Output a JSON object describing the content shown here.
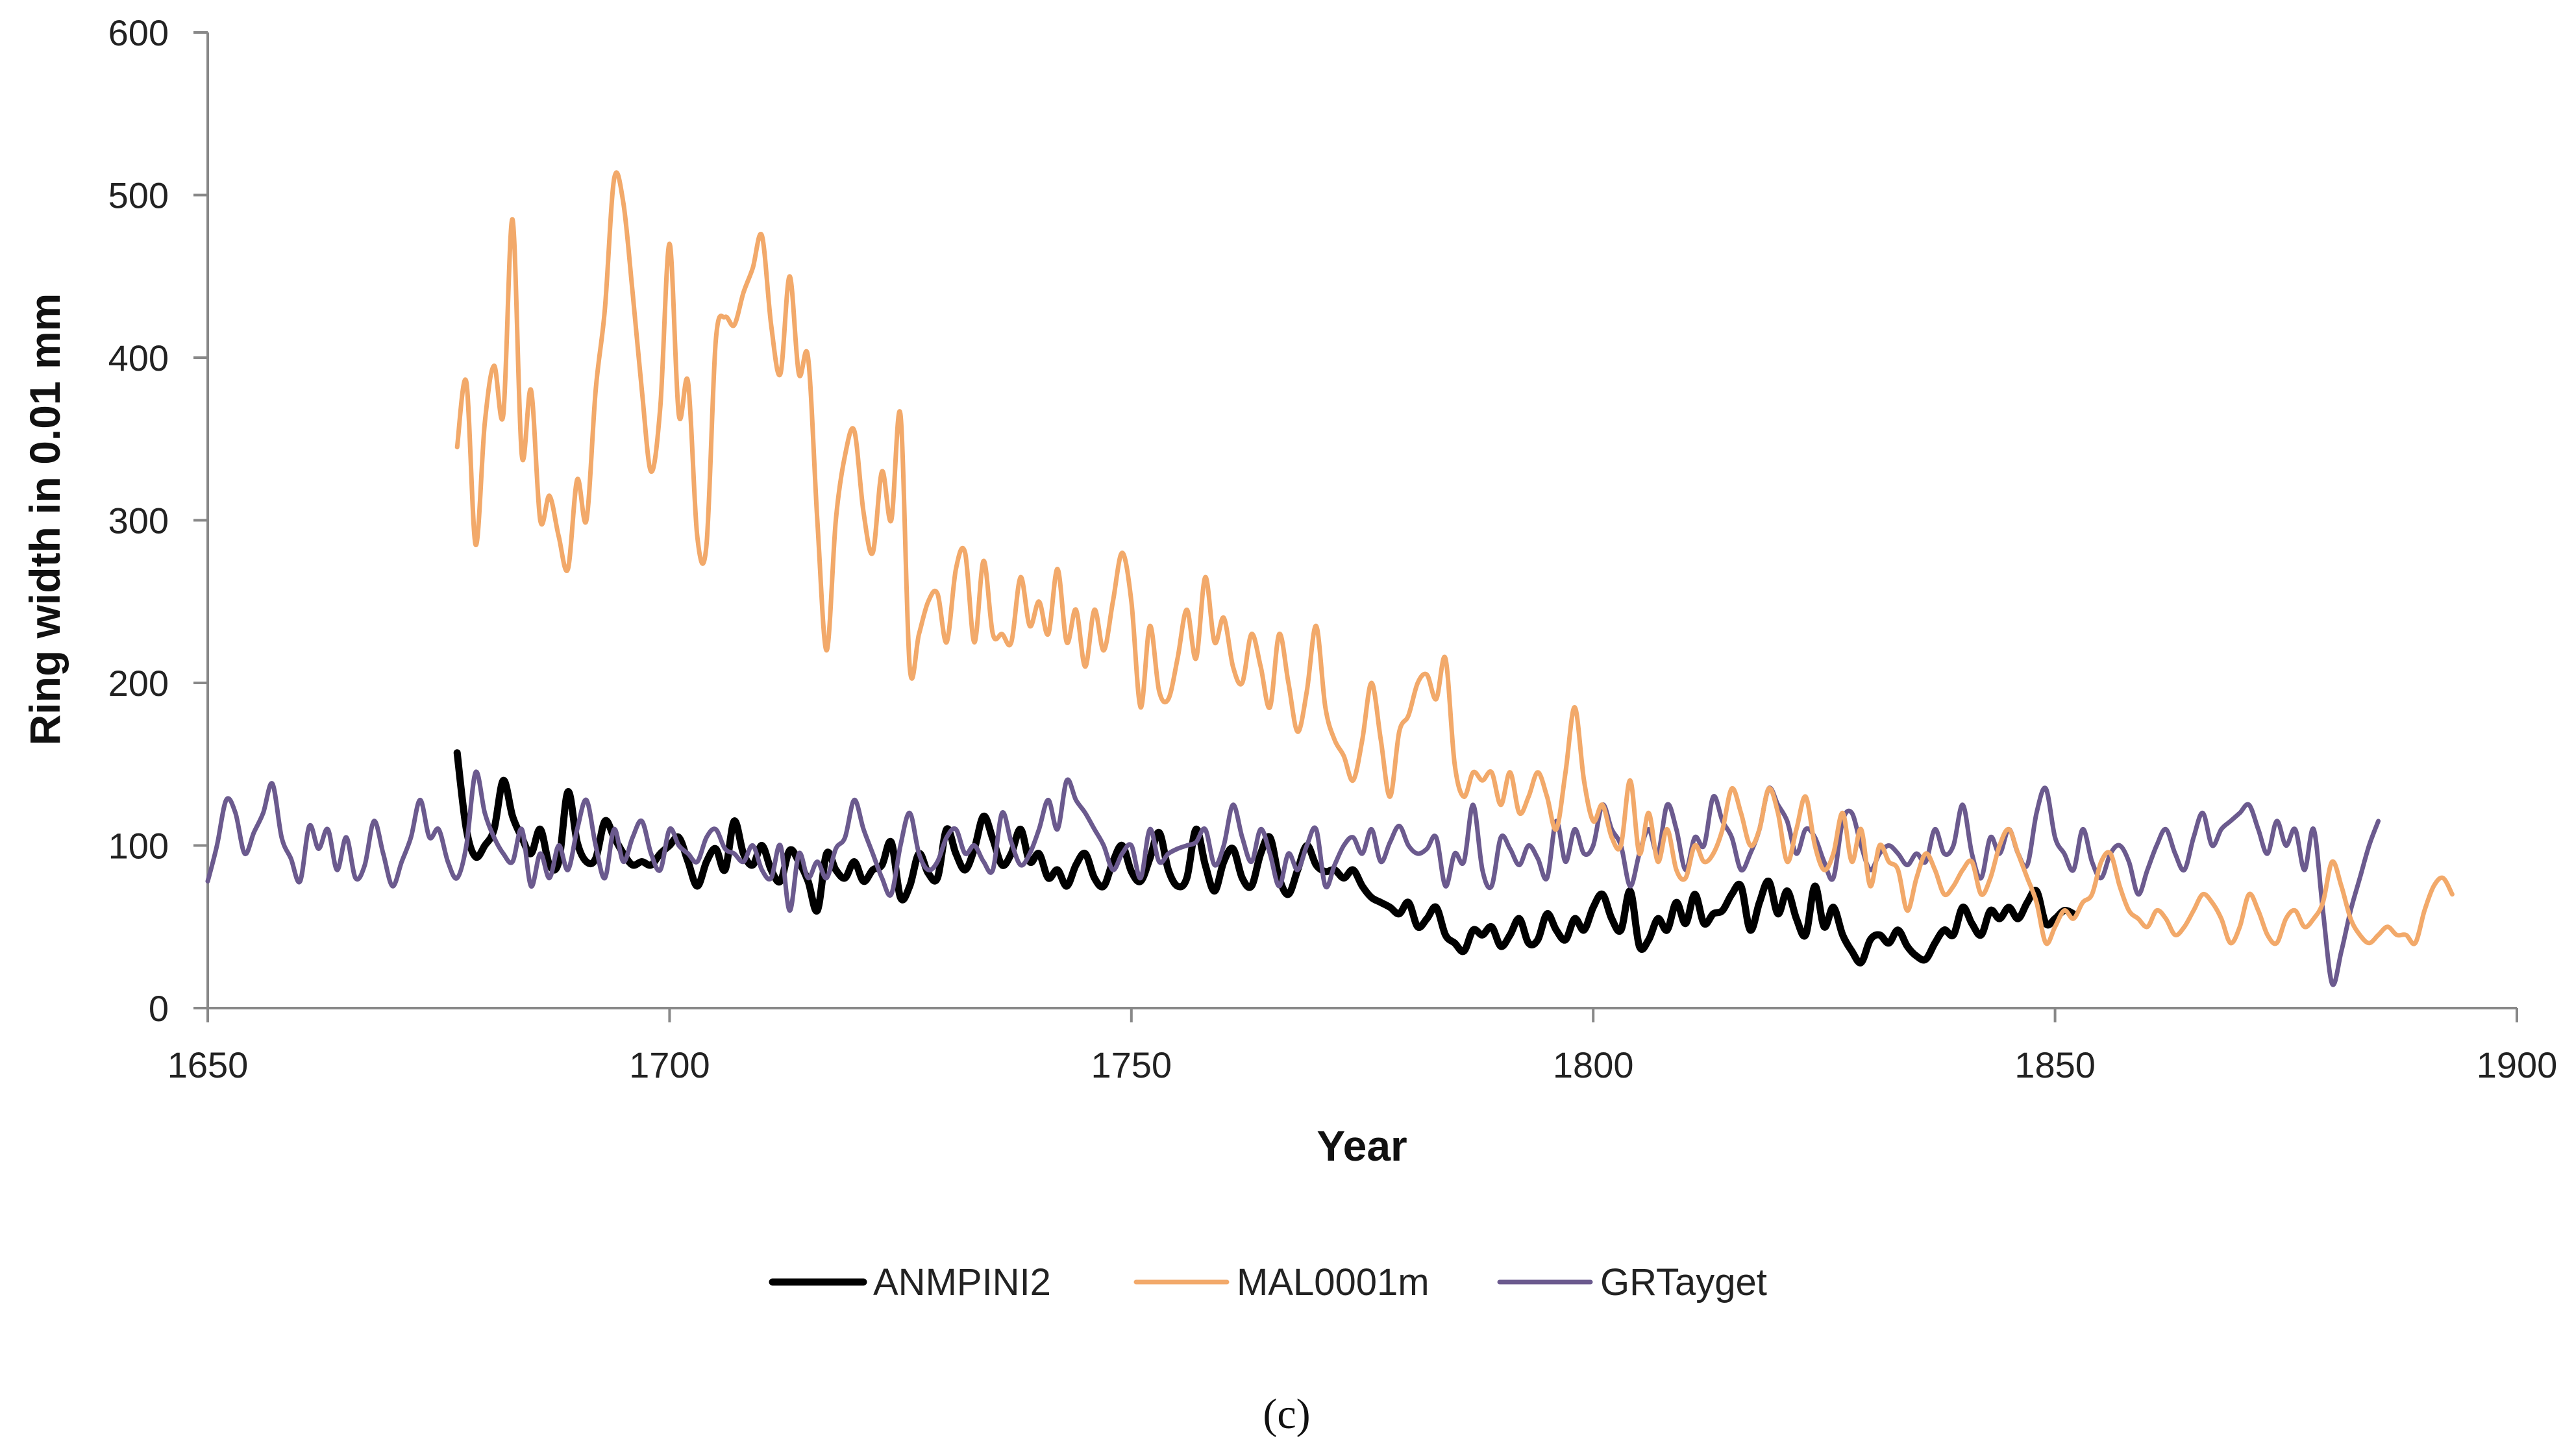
{
  "chart_data": {
    "type": "line",
    "title": "",
    "xlabel": "Year",
    "ylabel": "Ring width in 0.01 mm",
    "xlim": [
      1650,
      1900
    ],
    "ylim": [
      0,
      600
    ],
    "x_ticks": [
      "1650",
      "1700",
      "1750",
      "1800",
      "1850",
      "1900"
    ],
    "y_ticks": [
      "0",
      "100",
      "200",
      "300",
      "400",
      "500",
      "600"
    ],
    "grid": false,
    "legend_position": "bottom",
    "panel_label": "(c)",
    "series": [
      {
        "name": "ANMPINI2",
        "color": "#000000",
        "start_year": 1677,
        "values": [
          157,
          110,
          93,
          100,
          110,
          140,
          118,
          105,
          95,
          110,
          88,
          90,
          133,
          102,
          90,
          92,
          115,
          105,
          95,
          88,
          90,
          88,
          95,
          100,
          105,
          90,
          75,
          90,
          98,
          85,
          115,
          95,
          88,
          100,
          85,
          78,
          97,
          90,
          78,
          60,
          95,
          85,
          80,
          90,
          78,
          85,
          88,
          102,
          68,
          75,
          95,
          83,
          80,
          110,
          95,
          85,
          98,
          118,
          104,
          88,
          95,
          110,
          90,
          95,
          80,
          85,
          75,
          88,
          95,
          80,
          75,
          90,
          100,
          84,
          78,
          92,
          108,
          85,
          75,
          80,
          110,
          88,
          72,
          90,
          98,
          80,
          75,
          95,
          105,
          80,
          70,
          85,
          100,
          88,
          84,
          85,
          80,
          85,
          75,
          68,
          65,
          62,
          58,
          65,
          50,
          55,
          62,
          45,
          40,
          35,
          48,
          45,
          50,
          38,
          45,
          55,
          40,
          42,
          58,
          48,
          42,
          55,
          48,
          62,
          70,
          55,
          48,
          72,
          38,
          42,
          55,
          48,
          65,
          52,
          70,
          52,
          58,
          60,
          70,
          75,
          48,
          65,
          78,
          58,
          72,
          55,
          45,
          75,
          50,
          62,
          45,
          35,
          28,
          42,
          45,
          40,
          48,
          38,
          32,
          30,
          40,
          48,
          45,
          62,
          52,
          45,
          60,
          55,
          62,
          55,
          65,
          72,
          52,
          55,
          60,
          58
        ]
      },
      {
        "name": "MAL0001m",
        "color": "#F2A96A",
        "start_year": 1677,
        "values": [
          345,
          385,
          285,
          360,
          395,
          365,
          485,
          340,
          380,
          300,
          315,
          290,
          270,
          325,
          300,
          380,
          430,
          510,
          495,
          440,
          380,
          330,
          370,
          470,
          365,
          385,
          290,
          285,
          410,
          425,
          420,
          440,
          455,
          475,
          420,
          390,
          450,
          390,
          400,
          300,
          220,
          300,
          340,
          355,
          305,
          280,
          330,
          300,
          365,
          210,
          230,
          250,
          255,
          225,
          270,
          280,
          225,
          275,
          230,
          230,
          225,
          265,
          235,
          250,
          230,
          270,
          225,
          245,
          210,
          245,
          220,
          250,
          280,
          250,
          185,
          235,
          195,
          190,
          215,
          245,
          215,
          265,
          225,
          240,
          210,
          200,
          230,
          210,
          185,
          230,
          200,
          170,
          195,
          235,
          185,
          165,
          155,
          140,
          165,
          200,
          165,
          130,
          170,
          180,
          200,
          205,
          190,
          215,
          150,
          130,
          145,
          140,
          145,
          125,
          145,
          120,
          130,
          145,
          130,
          110,
          145,
          185,
          140,
          115,
          125,
          105,
          100,
          140,
          95,
          120,
          90,
          110,
          85,
          80,
          100,
          90,
          95,
          110,
          135,
          120,
          100,
          110,
          135,
          120,
          90,
          110,
          130,
          100,
          85,
          95,
          120,
          90,
          110,
          75,
          100,
          90,
          85,
          60,
          80,
          95,
          85,
          70,
          75,
          85,
          90,
          70,
          80,
          100,
          110,
          95,
          80,
          65,
          40,
          50,
          60,
          55,
          65,
          70,
          90,
          95,
          75,
          60,
          55,
          50,
          60,
          55,
          45,
          50,
          60,
          70,
          65,
          55,
          40,
          50,
          70,
          60,
          45,
          40,
          55,
          60,
          50,
          55,
          65,
          90,
          75,
          55,
          45,
          40,
          45,
          50,
          45,
          45,
          40,
          60,
          75,
          80,
          70
        ]
      },
      {
        "name": "GRTayget",
        "color": "#6B5A8E",
        "start_year": 1650,
        "values": [
          78,
          100,
          128,
          120,
          95,
          108,
          120,
          138,
          105,
          92,
          78,
          112,
          98,
          110,
          85,
          105,
          80,
          88,
          115,
          95,
          75,
          90,
          105,
          128,
          105,
          110,
          90,
          80,
          100,
          145,
          120,
          105,
          95,
          90,
          110,
          75,
          95,
          80,
          100,
          85,
          110,
          128,
          100,
          80,
          110,
          90,
          105,
          115,
          95,
          85,
          110,
          100,
          95,
          90,
          105,
          110,
          98,
          95,
          90,
          100,
          85,
          80,
          100,
          60,
          95,
          80,
          90,
          80,
          98,
          105,
          128,
          110,
          95,
          80,
          70,
          100,
          120,
          95,
          85,
          90,
          105,
          110,
          95,
          100,
          90,
          85,
          120,
          102,
          88,
          95,
          110,
          128,
          110,
          140,
          128,
          120,
          110,
          100,
          85,
          95,
          100,
          80,
          110,
          90,
          95,
          98,
          100,
          102,
          110,
          88,
          100,
          125,
          105,
          90,
          110,
          95,
          75,
          95,
          85,
          100,
          110,
          75,
          88,
          100,
          105,
          95,
          110,
          90,
          102,
          112,
          100,
          95,
          98,
          105,
          75,
          95,
          90,
          125,
          85,
          75,
          105,
          98,
          88,
          100,
          92,
          80,
          115,
          90,
          110,
          95,
          100,
          125,
          110,
          100,
          75,
          95,
          110,
          95,
          125,
          110,
          85,
          105,
          100,
          130,
          115,
          105,
          85,
          95,
          110,
          135,
          125,
          115,
          95,
          110,
          105,
          90,
          80,
          115,
          120,
          100,
          85,
          95,
          100,
          95,
          88,
          95,
          90,
          110,
          95,
          100,
          125,
          95,
          80,
          105,
          95,
          110,
          95,
          88,
          120,
          135,
          105,
          95,
          85,
          110,
          90,
          80,
          95,
          100,
          90,
          70,
          85,
          100,
          110,
          95,
          85,
          105,
          120,
          100,
          110,
          115,
          120,
          125,
          110,
          95,
          115,
          100,
          110,
          85,
          110,
          60,
          15,
          35,
          60,
          80,
          100,
          115
        ]
      }
    ]
  }
}
